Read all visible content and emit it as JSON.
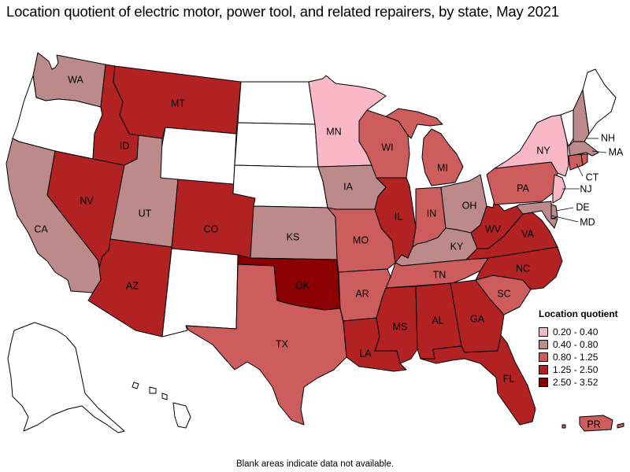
{
  "title": "Location quotient of electric motor, power tool, and related repairers, by state, May 2021",
  "footnote": "Blank areas indicate data not available.",
  "legend": {
    "title": "Location quotient",
    "items": [
      {
        "label": "0.20 - 0.40",
        "color": "#f9b8c6"
      },
      {
        "label": "0.40 - 0.80",
        "color": "#bc8a8a"
      },
      {
        "label": "0.80 - 1.25",
        "color": "#cd5c5c"
      },
      {
        "label": "1.25 - 2.50",
        "color": "#b22222"
      },
      {
        "label": "2.50 - 3.52",
        "color": "#8b0000"
      }
    ]
  },
  "states": {
    "WA": {
      "label": "WA",
      "class": "0.40 - 0.80"
    },
    "OR": {
      "label": "",
      "class": "none"
    },
    "CA": {
      "label": "CA",
      "class": "0.40 - 0.80"
    },
    "ID": {
      "label": "ID",
      "class": "1.25 - 2.50"
    },
    "NV": {
      "label": "NV",
      "class": "1.25 - 2.50"
    },
    "MT": {
      "label": "MT",
      "class": "1.25 - 2.50"
    },
    "WY": {
      "label": "",
      "class": "none"
    },
    "UT": {
      "label": "UT",
      "class": "0.40 - 0.80"
    },
    "AZ": {
      "label": "AZ",
      "class": "1.25 - 2.50"
    },
    "CO": {
      "label": "CO",
      "class": "1.25 - 2.50"
    },
    "NM": {
      "label": "",
      "class": "none"
    },
    "ND": {
      "label": "",
      "class": "none"
    },
    "SD": {
      "label": "",
      "class": "none"
    },
    "NE": {
      "label": "",
      "class": "none"
    },
    "KS": {
      "label": "KS",
      "class": "0.40 - 0.80"
    },
    "OK": {
      "label": "OK",
      "class": "2.50 - 3.52"
    },
    "TX": {
      "label": "TX",
      "class": "0.80 - 1.25"
    },
    "MN": {
      "label": "MN",
      "class": "0.20 - 0.40"
    },
    "IA": {
      "label": "IA",
      "class": "0.40 - 0.80"
    },
    "MO": {
      "label": "MO",
      "class": "0.80 - 1.25"
    },
    "AR": {
      "label": "AR",
      "class": "0.80 - 1.25"
    },
    "LA": {
      "label": "LA",
      "class": "1.25 - 2.50"
    },
    "WI": {
      "label": "WI",
      "class": "0.80 - 1.25"
    },
    "IL": {
      "label": "IL",
      "class": "1.25 - 2.50"
    },
    "MI": {
      "label": "MI",
      "class": "0.80 - 1.25"
    },
    "IN": {
      "label": "IN",
      "class": "0.80 - 1.25"
    },
    "OH": {
      "label": "OH",
      "class": "0.40 - 0.80"
    },
    "KY": {
      "label": "KY",
      "class": "0.40 - 0.80"
    },
    "TN": {
      "label": "TN",
      "class": "0.80 - 1.25"
    },
    "MS": {
      "label": "MS",
      "class": "1.25 - 2.50"
    },
    "AL": {
      "label": "AL",
      "class": "1.25 - 2.50"
    },
    "GA": {
      "label": "GA",
      "class": "1.25 - 2.50"
    },
    "FL": {
      "label": "FL",
      "class": "1.25 - 2.50"
    },
    "SC": {
      "label": "SC",
      "class": "0.80 - 1.25"
    },
    "NC": {
      "label": "NC",
      "class": "1.25 - 2.50"
    },
    "VA": {
      "label": "VA",
      "class": "1.25 - 2.50"
    },
    "WV": {
      "label": "WV",
      "class": "1.25 - 2.50"
    },
    "PA": {
      "label": "PA",
      "class": "0.80 - 1.25"
    },
    "NY": {
      "label": "NY",
      "class": "0.20 - 0.40"
    },
    "VT": {
      "label": "",
      "class": "none"
    },
    "NH": {
      "label": "NH",
      "class": "0.40 - 0.80"
    },
    "ME": {
      "label": "",
      "class": "none"
    },
    "MA": {
      "label": "MA",
      "class": "0.40 - 0.80"
    },
    "CT": {
      "label": "CT",
      "class": "0.80 - 1.25"
    },
    "RI": {
      "label": "",
      "class": "0.80 - 1.25"
    },
    "NJ": {
      "label": "NJ",
      "class": "0.20 - 0.40"
    },
    "DE": {
      "label": "DE",
      "class": "0.40 - 0.80"
    },
    "MD": {
      "label": "MD",
      "class": "0.40 - 0.80"
    },
    "AK": {
      "label": "",
      "class": "none"
    },
    "HI": {
      "label": "",
      "class": "none"
    },
    "PR": {
      "label": "PR",
      "class": "0.80 - 1.25"
    }
  }
}
